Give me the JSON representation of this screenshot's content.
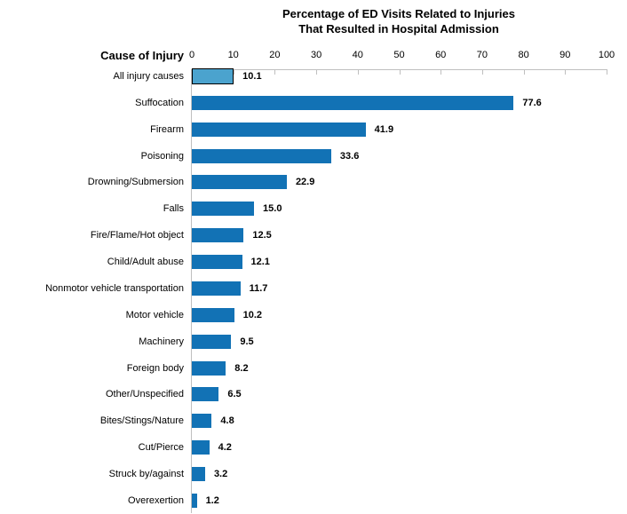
{
  "chart_data": {
    "type": "bar",
    "orientation": "horizontal",
    "title_line1": "Percentage of ED Visits Related to Injuries",
    "title_line2": "That Resulted in Hospital Admission",
    "axis_title": "Cause of Injury",
    "categories": [
      "All injury causes",
      "Suffocation",
      "Firearm",
      "Poisoning",
      "Drowning/Submersion",
      "Falls",
      "Fire/Flame/Hot object",
      "Child/Adult abuse",
      "Nonmotor vehicle transportation",
      "Motor vehicle",
      "Machinery",
      "Foreign body",
      "Other/Unspecified",
      "Bites/Stings/Nature",
      "Cut/Pierce",
      "Struck by/against",
      "Overexertion"
    ],
    "values": [
      10.1,
      77.6,
      41.9,
      33.6,
      22.9,
      15.0,
      12.5,
      12.1,
      11.7,
      10.2,
      9.5,
      8.2,
      6.5,
      4.8,
      4.2,
      3.2,
      1.2
    ],
    "value_labels": [
      "10.1",
      "77.6",
      "41.9",
      "33.6",
      "22.9",
      "15.0",
      "12.5",
      "12.1",
      "11.7",
      "10.2",
      "9.5",
      "8.2",
      "6.5",
      "4.8",
      "4.2",
      "3.2",
      "1.2"
    ],
    "x_ticks": [
      0,
      10,
      20,
      30,
      40,
      50,
      60,
      70,
      80,
      90,
      100
    ],
    "xlim": [
      0,
      100
    ],
    "xlabel": "",
    "grid": false,
    "legend": false,
    "highlight_index": 0,
    "colors": {
      "bar": "#1272B5",
      "highlight_bar": "#4BA3CE",
      "highlight_border": "#000000",
      "axis_line": "#BFBFBF",
      "text": "#000000"
    }
  }
}
